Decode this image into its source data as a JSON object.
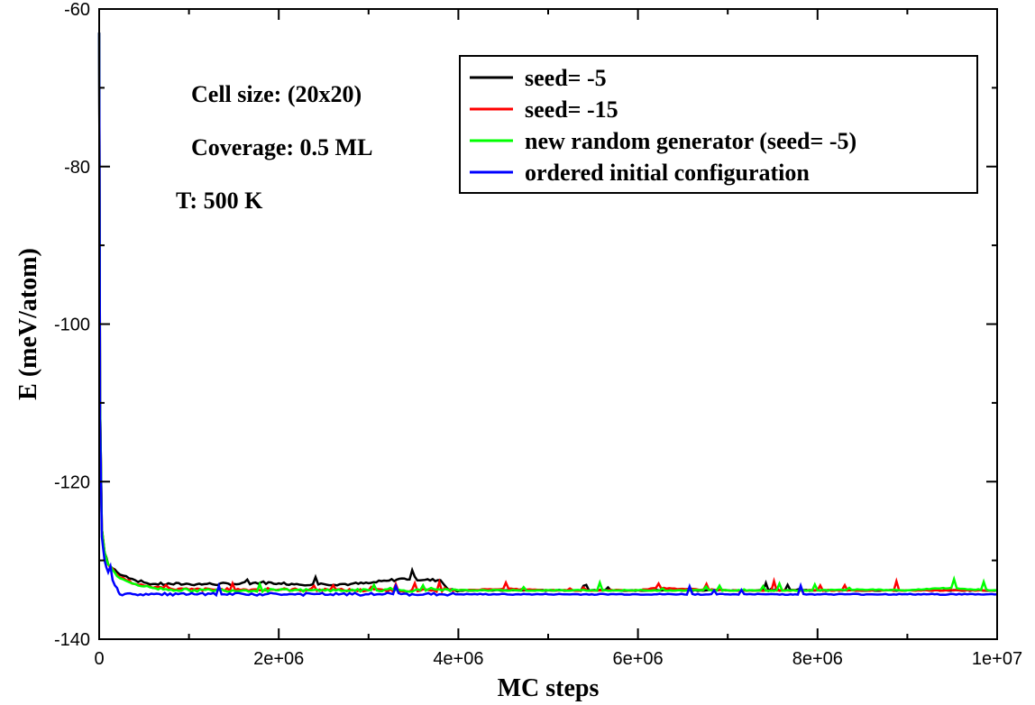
{
  "chart_data": {
    "type": "line",
    "title": "",
    "xlabel": "MC steps",
    "ylabel": "E (meV/atom)",
    "xlim": [
      0,
      10000000
    ],
    "ylim": [
      -140,
      -60
    ],
    "x_ticks": [
      0,
      2000000,
      4000000,
      6000000,
      8000000,
      10000000
    ],
    "x_tick_labels": [
      "0",
      "2e+06",
      "4e+06",
      "6e+06",
      "8e+06",
      "1e+07"
    ],
    "y_ticks": [
      -140,
      -120,
      -100,
      -80,
      -60
    ],
    "y_tick_labels": [
      "-140",
      "-120",
      "-100",
      "-80",
      "-60"
    ],
    "grid": false,
    "legend_position": "top-right",
    "annotations": [
      "Cell size: (20x20)",
      "Coverage: 0.5 ML",
      "T: 500 K"
    ],
    "series": [
      {
        "name": "seed= -5",
        "color": "#000000",
        "x": [
          0,
          10000,
          30000,
          60000,
          100000,
          150000,
          200000,
          300000,
          400000,
          500000,
          600000,
          800000,
          1000000,
          1200000,
          1500000,
          1800000,
          2000000,
          2200000,
          2500000,
          2800000,
          3000000,
          3200000,
          3400000,
          3600000,
          3800000,
          3900000,
          4200000,
          5000000,
          6000000,
          7000000,
          8000000,
          9000000,
          10000000
        ],
        "y": [
          -63,
          -110,
          -126,
          -129,
          -130.5,
          -131,
          -131.5,
          -132,
          -132.5,
          -132.8,
          -133,
          -133,
          -133,
          -133,
          -133,
          -132.8,
          -132.9,
          -133,
          -133,
          -133,
          -132.9,
          -132.6,
          -132.3,
          -132.5,
          -132.5,
          -133.8,
          -133.8,
          -133.8,
          -133.8,
          -133.8,
          -133.8,
          -133.8,
          -133.8
        ]
      },
      {
        "name": "seed= -15",
        "color": "#ff0000",
        "x": [
          0,
          10000,
          30000,
          60000,
          100000,
          150000,
          200000,
          300000,
          400000,
          500000,
          600000,
          800000,
          1000000,
          2000000,
          3000000,
          4000000,
          4500000,
          5000000,
          6000000,
          6200000,
          7000000,
          8000000,
          9000000,
          10000000
        ],
        "y": [
          -63,
          -110,
          -126,
          -129,
          -130.5,
          -131,
          -131.8,
          -132.5,
          -133,
          -133.2,
          -133.5,
          -133.6,
          -133.7,
          -133.7,
          -133.8,
          -133.8,
          -133.6,
          -133.8,
          -133.8,
          -133.5,
          -133.8,
          -133.8,
          -133.8,
          -133.8
        ]
      },
      {
        "name": "new random generator (seed= -5)",
        "color": "#00ff00",
        "x": [
          0,
          10000,
          30000,
          60000,
          100000,
          150000,
          200000,
          300000,
          400000,
          500000,
          600000,
          800000,
          1000000,
          2000000,
          3000000,
          4000000,
          5000000,
          6000000,
          7000000,
          8000000,
          8500000,
          9000000,
          9400000,
          10000000
        ],
        "y": [
          -63,
          -110,
          -126,
          -129,
          -130.5,
          -131.2,
          -132,
          -132.6,
          -133,
          -133.3,
          -133.5,
          -133.7,
          -133.8,
          -133.8,
          -133.8,
          -133.8,
          -133.8,
          -133.8,
          -133.8,
          -133.8,
          -133.7,
          -133.8,
          -133.5,
          -133.8
        ]
      },
      {
        "name": "ordered initial configuration",
        "color": "#0000ff",
        "x": [
          0,
          10000,
          30000,
          60000,
          100000,
          150000,
          200000,
          230000,
          400000,
          1000000,
          2000000,
          3000000,
          4000000,
          5000000,
          6000000,
          7000000,
          7700000,
          7750000,
          8000000,
          9000000,
          10000000
        ],
        "y": [
          -63,
          -112,
          -127,
          -130,
          -131.5,
          -132.5,
          -133.5,
          -134.3,
          -134.3,
          -134.3,
          -134.3,
          -134.3,
          -134.3,
          -134.3,
          -134.3,
          -134.3,
          -134.3,
          -134.3,
          -134.3,
          -134.3,
          -134.3
        ]
      }
    ]
  }
}
